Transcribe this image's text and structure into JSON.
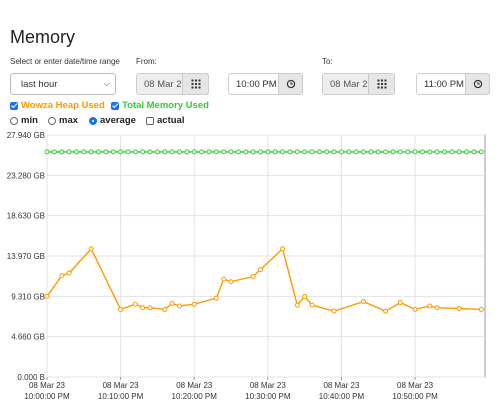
{
  "page": {
    "title": "Memory"
  },
  "range": {
    "label": "Select or enter date/time range",
    "selected": "last hour"
  },
  "from": {
    "label": "From:",
    "date": "08 Mar 23",
    "time": "10:00 PM"
  },
  "to": {
    "label": "To:",
    "date": "08 Mar 23",
    "time": "11:00 PM"
  },
  "series_toggles": [
    {
      "label": "Wowza Heap Used",
      "checked": true,
      "color": "#ff9900"
    },
    {
      "label": "Total Memory Used",
      "checked": true,
      "color": "#33cc33"
    }
  ],
  "modes": [
    {
      "label": "min",
      "selected": false
    },
    {
      "label": "max",
      "selected": false
    },
    {
      "label": "average",
      "selected": true
    }
  ],
  "actual": {
    "label": "actual",
    "checked": false
  },
  "chart_data": {
    "type": "line",
    "ylim": [
      0,
      27.94
    ],
    "yticks": [
      {
        "value": 0,
        "label": "0.000 B"
      },
      {
        "value": 4.66,
        "label": "4.660 GB"
      },
      {
        "value": 9.31,
        "label": "9.310 GB"
      },
      {
        "value": 13.97,
        "label": "13.970 GB"
      },
      {
        "value": 18.63,
        "label": "18.630 GB"
      },
      {
        "value": 23.28,
        "label": "23.280 GB"
      },
      {
        "value": 27.94,
        "label": "27.940 GB"
      }
    ],
    "xlim": [
      0,
      59.5
    ],
    "xticks": [
      {
        "value": 0,
        "date": "08 Mar 23",
        "time": "10:00:00 PM"
      },
      {
        "value": 10,
        "date": "08 Mar 23",
        "time": "10:10:00 PM"
      },
      {
        "value": 20,
        "date": "08 Mar 23",
        "time": "10:20:00 PM"
      },
      {
        "value": 30,
        "date": "08 Mar 23",
        "time": "10:30:00 PM"
      },
      {
        "value": 40,
        "date": "08 Mar 23",
        "time": "10:40:00 PM"
      },
      {
        "value": 50,
        "date": "08 Mar 23",
        "time": "10:50:00 PM"
      }
    ],
    "grid": true,
    "series": [
      {
        "color": "#33cc33",
        "x": [
          0,
          1,
          2,
          3,
          4,
          5,
          6,
          7,
          8,
          9,
          10,
          11,
          12,
          13,
          14,
          15,
          16,
          17,
          18,
          19,
          20,
          21,
          22,
          23,
          24,
          25,
          26,
          27,
          28,
          29,
          30,
          31,
          32,
          33,
          34,
          35,
          36,
          37,
          38,
          39,
          40,
          41,
          42,
          43,
          44,
          45,
          46,
          47,
          48,
          49,
          50,
          51,
          52,
          53,
          54,
          55,
          56,
          57,
          58,
          59
        ],
        "y": [
          25.99,
          25.99,
          25.99,
          25.99,
          25.99,
          25.99,
          25.99,
          25.99,
          25.99,
          25.99,
          25.99,
          25.99,
          25.99,
          25.99,
          25.99,
          25.99,
          25.99,
          25.99,
          25.99,
          25.99,
          25.99,
          25.99,
          25.99,
          25.99,
          25.99,
          25.99,
          25.99,
          25.99,
          25.99,
          25.99,
          25.99,
          25.99,
          25.99,
          25.99,
          25.99,
          25.99,
          25.99,
          25.99,
          25.99,
          25.99,
          25.99,
          25.99,
          25.99,
          25.99,
          25.99,
          25.99,
          25.99,
          25.99,
          25.99,
          25.99,
          25.99,
          25.99,
          25.99,
          25.99,
          25.99,
          25.99,
          25.99,
          25.99,
          25.99,
          25.99
        ]
      },
      {
        "color": "#ff9900",
        "x": [
          0,
          2,
          3,
          6,
          10,
          12,
          13,
          14,
          16,
          17,
          18,
          20,
          23,
          24,
          25,
          28,
          29,
          32,
          34,
          35,
          36,
          39,
          43,
          46,
          48,
          50,
          52,
          53,
          56,
          59
        ],
        "y": [
          9.31,
          11.7,
          12.0,
          14.8,
          7.8,
          8.4,
          8.0,
          8.0,
          7.8,
          8.5,
          8.2,
          8.4,
          9.1,
          11.3,
          11.0,
          11.6,
          12.4,
          14.8,
          8.3,
          9.3,
          8.3,
          7.6,
          8.7,
          7.6,
          8.6,
          7.8,
          8.2,
          8.0,
          7.9,
          7.8
        ]
      }
    ]
  }
}
